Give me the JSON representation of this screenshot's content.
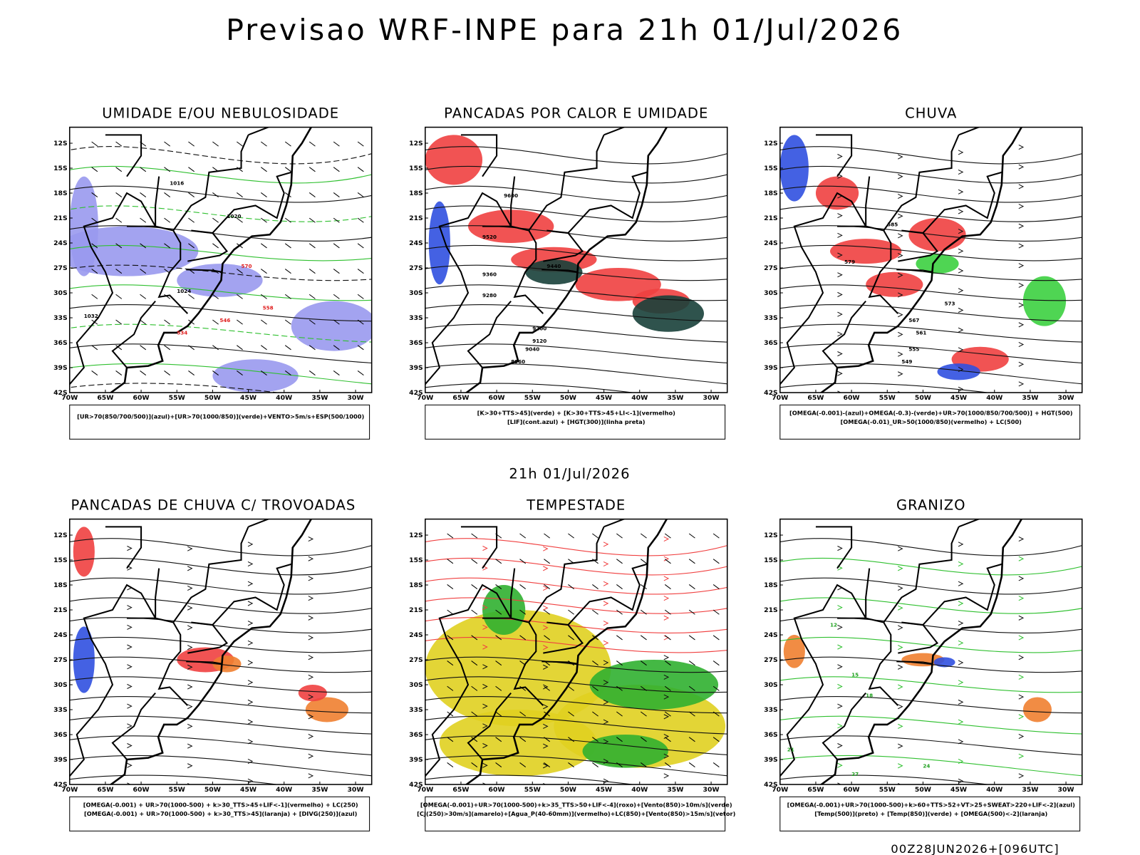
{
  "header": {
    "title": "Previsao WRF-INPE  para 21h 01/Jul/2026",
    "mid_date": "21h 01/Jul/2026",
    "footer": "00Z28JUN2026+[096UTC]"
  },
  "lat_labels": [
    "12S",
    "15S",
    "18S",
    "21S",
    "24S",
    "27S",
    "30S",
    "33S",
    "36S",
    "39S",
    "42S"
  ],
  "lon_labels": [
    "70W",
    "65W",
    "60W",
    "55W",
    "50W",
    "45W",
    "40W",
    "35W",
    "30W"
  ],
  "panels": [
    {
      "title": "UMIDADE E/OU NEBULOSIDADE",
      "legend": [
        "[UR>70(850/700/500)](azul)+[UR>70(1000/850)](verde)+VENTO>5m/s+ESP(500/1000)"
      ],
      "contour_labels": [
        "1016",
        "1020",
        "1024",
        "1032",
        "570",
        "558",
        "546",
        "534"
      ]
    },
    {
      "title": "PANCADAS POR CALOR E UMIDADE",
      "legend": [
        "[K>30+TTS>45](verde) + [K>30+TTS>45+LI<-1](vermelho)",
        "[LIF](cont.azul) + [HGT(300)](linha preta)"
      ],
      "contour_labels": [
        "9600",
        "9520",
        "9440",
        "9360",
        "9280",
        "9200",
        "9120",
        "9040",
        "8960"
      ]
    },
    {
      "title": "CHUVA",
      "legend": [
        "[OMEGA(-0.001)-(azul)+OMEGA(-0.3)-(verde)+UR>70(1000/850/700/500)] + HGT(500)",
        "[OMEGA(-0.01)_UR>50(1000/850)(vermelho) + LC(500)"
      ],
      "contour_labels": [
        "585",
        "579",
        "573",
        "567",
        "561",
        "555",
        "549"
      ]
    },
    {
      "title": "PANCADAS DE CHUVA C/ TROVOADAS",
      "legend": [
        "[OMEGA(-0.001) + UR>70(1000-500) + k>30_TTS>45+LIF<-1](vermelho) + LC(250)",
        "[OMEGA(-0.001) + UR>70(1000-500) + k>30_TTS>45](laranja) + [DIVG(250)](azul)"
      ]
    },
    {
      "title": "TEMPESTADE",
      "legend": [
        "[OMEGA(-0.001)+UR>70(1000-500)+k>35_TTS>50+LIF<-4](roxo)+[Vento(850)>10m/s](verde)",
        "[CJ(250)>30m/s](amarelo)+[Agua_P(40-60mm)](vermelho)+LC(850)+[Vento(850)>15m/s](vetor)"
      ]
    },
    {
      "title": "GRANIZO",
      "legend": [
        "[OMEGA(-0.001)+UR>70(1000-500)+k>60+TTS>52+VT>25+SWEAT>220+LIF<-2](azul)",
        "[Temp(500)](preto) + [Temp(850)](verde) + [OMEGA(500)<-2](laranja)"
      ],
      "contour_labels": [
        "12",
        "15",
        "18",
        "21",
        "24",
        "27"
      ]
    }
  ]
}
